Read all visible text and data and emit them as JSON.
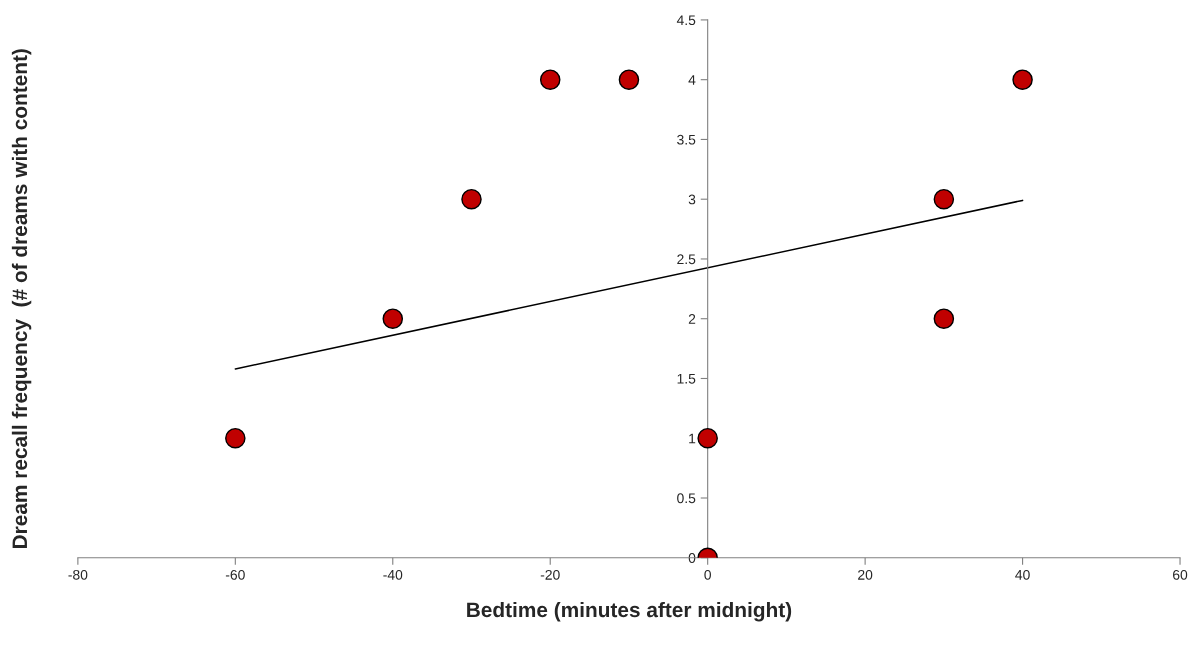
{
  "chart_data": {
    "type": "scatter",
    "xlabel": "Bedtime (minutes after midnight)",
    "ylabel": "Dream recall frequency  (# of dreams with content)",
    "x": [
      -60,
      -40,
      -30,
      -20,
      -10,
      0,
      0,
      30,
      30,
      40
    ],
    "series": [
      {
        "color": "#c00000",
        "values": [
          1,
          2,
          3,
          4,
          4,
          1,
          0,
          3,
          2,
          4
        ],
        "marker": "circle"
      },
      {
        "type": "line",
        "color": "#000000",
        "x": [
          -60,
          40
        ],
        "values": [
          1.58,
          2.99
        ],
        "line_style": "solid"
      }
    ],
    "xlim": [
      -80,
      60
    ],
    "xticks": [
      -80,
      -60,
      -40,
      -20,
      0,
      20,
      40,
      60
    ],
    "ylim": [
      0,
      4.5
    ],
    "yticks": [
      0,
      0.5,
      1,
      1.5,
      2,
      2.5,
      3,
      3.5,
      4,
      4.5
    ],
    "grid": false,
    "legend": false
  }
}
